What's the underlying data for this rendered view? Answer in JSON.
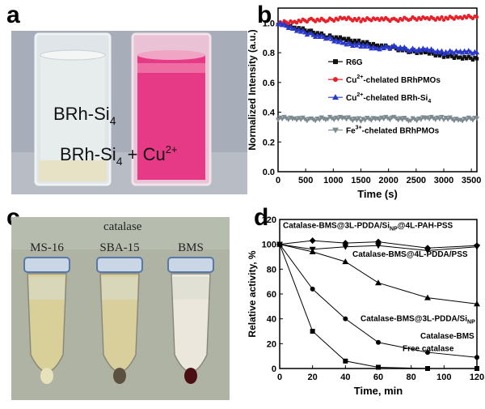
{
  "panel_labels": {
    "a": "a",
    "b": "b",
    "c": "c",
    "d": "d"
  },
  "panel_a": {
    "label_left": "BRh-Si",
    "label_left_sub": "4",
    "label_right": "BRh-Si",
    "label_right_sub": "4",
    "label_right_plus": "+ Cu",
    "label_right_sup": "2+",
    "colors": {
      "background": "#a6acb8",
      "cuvette_clear": "#dfe6ea",
      "cuvette_pink": "#e63a86"
    }
  },
  "panel_c": {
    "title": "catalase",
    "tubes": [
      {
        "label": "MS-16",
        "liquid": "#d9cf98",
        "pellet": "#e8e2bb"
      },
      {
        "label": "SBA-15",
        "liquid": "#d9cf9c",
        "pellet": "#5a5140"
      },
      {
        "label": "BMS",
        "liquid": "#ece7dd",
        "pellet": "#4a0f12"
      }
    ]
  },
  "chart_data": [
    {
      "type": "line",
      "xlabel": "Time (s)",
      "ylabel": "Normalized Intensity (a.u.)",
      "xlim": [
        0,
        3600
      ],
      "ylim": [
        0.0,
        1.1
      ],
      "xticks": [
        0,
        500,
        1000,
        1500,
        2000,
        2500,
        3000,
        3500
      ],
      "yticks": [
        0.0,
        0.2,
        0.4,
        0.6,
        0.8,
        1.0
      ],
      "legend_placement": "right",
      "series": [
        {
          "name": "R6G",
          "marker": "square",
          "color": "#111111",
          "x": [
            0,
            300,
            600,
            900,
            1200,
            1500,
            1800,
            2100,
            2400,
            2700,
            3000,
            3300,
            3600
          ],
          "y": [
            1.0,
            0.97,
            0.94,
            0.91,
            0.89,
            0.87,
            0.85,
            0.83,
            0.81,
            0.8,
            0.78,
            0.77,
            0.76
          ]
        },
        {
          "name": "Cu2+-chelated BRhPMOs",
          "name_prefix": "Cu",
          "name_sup": "2+",
          "name_suffix": "-chelated BRhPMOs",
          "marker": "circle",
          "color": "#e8202a",
          "x": [
            0,
            300,
            600,
            900,
            1200,
            1500,
            1800,
            2100,
            2400,
            2700,
            3000,
            3300,
            3600
          ],
          "y": [
            1.0,
            1.01,
            1.02,
            1.02,
            1.03,
            1.02,
            1.03,
            1.02,
            1.03,
            1.03,
            1.03,
            1.04,
            1.04
          ]
        },
        {
          "name": "Cu2+-chelated BRh-Si4",
          "name_prefix": "Cu",
          "name_sup": "2+",
          "name_suffix": "-chelated BRh-Si",
          "name_sub": "4",
          "marker": "triangle-up",
          "color": "#2a39c8",
          "x": [
            0,
            300,
            600,
            900,
            1200,
            1500,
            1800,
            2100,
            2400,
            2700,
            3000,
            3300,
            3600
          ],
          "y": [
            1.0,
            0.96,
            0.92,
            0.9,
            0.86,
            0.85,
            0.83,
            0.84,
            0.82,
            0.82,
            0.8,
            0.81,
            0.8
          ]
        },
        {
          "name": "Fe3+-chelated BRhPMOs",
          "name_prefix": "Fe",
          "name_sup": "3+",
          "name_suffix": "-chelated BRhPMOs",
          "marker": "triangle-down",
          "color": "#7d8a90",
          "x": [
            0,
            300,
            600,
            900,
            1200,
            1500,
            1800,
            2100,
            2400,
            2700,
            3000,
            3300,
            3600
          ],
          "y": [
            0.36,
            0.36,
            0.35,
            0.36,
            0.36,
            0.35,
            0.36,
            0.36,
            0.35,
            0.36,
            0.36,
            0.35,
            0.36
          ]
        }
      ]
    },
    {
      "type": "line",
      "xlabel": "Time, min",
      "ylabel": "Relative activity, %",
      "xlim": [
        0,
        120
      ],
      "ylim": [
        0,
        120
      ],
      "xticks": [
        0,
        20,
        40,
        60,
        80,
        100,
        120
      ],
      "yticks": [
        0,
        20,
        40,
        60,
        80,
        100,
        120
      ],
      "series": [
        {
          "name": "Catalase-BMS@3L-PDDA/SiNP@4L-PAH-PSS",
          "label_main": "Catalase-BMS@3L-PDDA/Si",
          "label_sub": "NP",
          "label_tail": "@4L-PAH-PSS",
          "marker": "diamond",
          "x": [
            0,
            20,
            40,
            60,
            90,
            120
          ],
          "y": [
            100,
            103,
            101,
            102,
            97,
            99
          ]
        },
        {
          "name": "Catalase-BMS@4L-PDDA/PSS",
          "label_main": "Catalase-BMS@4L-PDDA/PSS",
          "marker": "filled-triangle-down",
          "x": [
            0,
            20,
            40,
            60,
            90,
            120
          ],
          "y": [
            100,
            96,
            98,
            99,
            95,
            98
          ]
        },
        {
          "name": "Catalase-BMS@3L-PDDA/SiNP",
          "label_main": "Catalase-BMS@3L-PDDA/Si",
          "label_sub": "NP",
          "label_tail": "",
          "marker": "triangle-up",
          "x": [
            0,
            20,
            40,
            60,
            90,
            120
          ],
          "y": [
            100,
            94,
            86,
            69,
            57,
            52
          ]
        },
        {
          "name": "Catalase-BMS",
          "label_main": "Catalase-BMS",
          "marker": "circle",
          "x": [
            0,
            20,
            40,
            60,
            90,
            120
          ],
          "y": [
            100,
            64,
            40,
            21,
            13,
            9
          ]
        },
        {
          "name": "Free catalase",
          "label_main": "Free catalase",
          "marker": "square",
          "x": [
            0,
            20,
            40,
            60,
            90,
            120
          ],
          "y": [
            100,
            30,
            6,
            1,
            0,
            0
          ]
        }
      ]
    }
  ]
}
